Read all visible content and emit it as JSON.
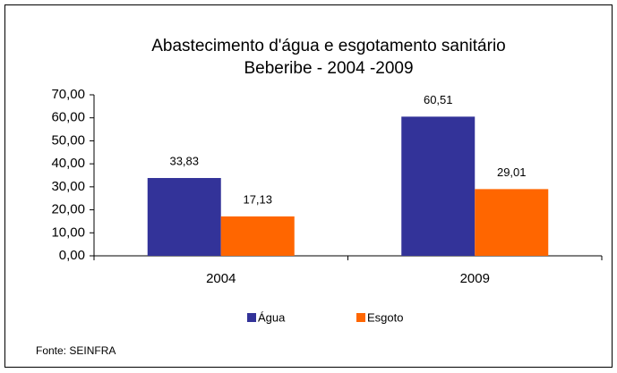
{
  "chart_data": {
    "type": "bar",
    "title": "Abastecimento d'água e esgotamento sanitário",
    "subtitle": "Beberibe - 2004 -2009",
    "categories": [
      "2004",
      "2009"
    ],
    "series": [
      {
        "name": "Água",
        "color": "#333399",
        "values": [
          33.83,
          60.51
        ],
        "value_labels": [
          "33,83",
          "60,51"
        ]
      },
      {
        "name": "Esgoto",
        "color": "#ff6600",
        "values": [
          17.13,
          29.01
        ],
        "value_labels": [
          "17,13",
          "29,01"
        ]
      }
    ],
    "ylim": [
      0,
      70
    ],
    "yticks": [
      {
        "value": 0,
        "label": "0,00"
      },
      {
        "value": 10,
        "label": "10,00"
      },
      {
        "value": 20,
        "label": "20,00"
      },
      {
        "value": 30,
        "label": "30,00"
      },
      {
        "value": 40,
        "label": "40,00"
      },
      {
        "value": 50,
        "label": "50,00"
      },
      {
        "value": 60,
        "label": "60,00"
      },
      {
        "value": 70,
        "label": "70,00"
      }
    ],
    "legend": "bottom",
    "source": "Fonte: SEINFRA"
  }
}
